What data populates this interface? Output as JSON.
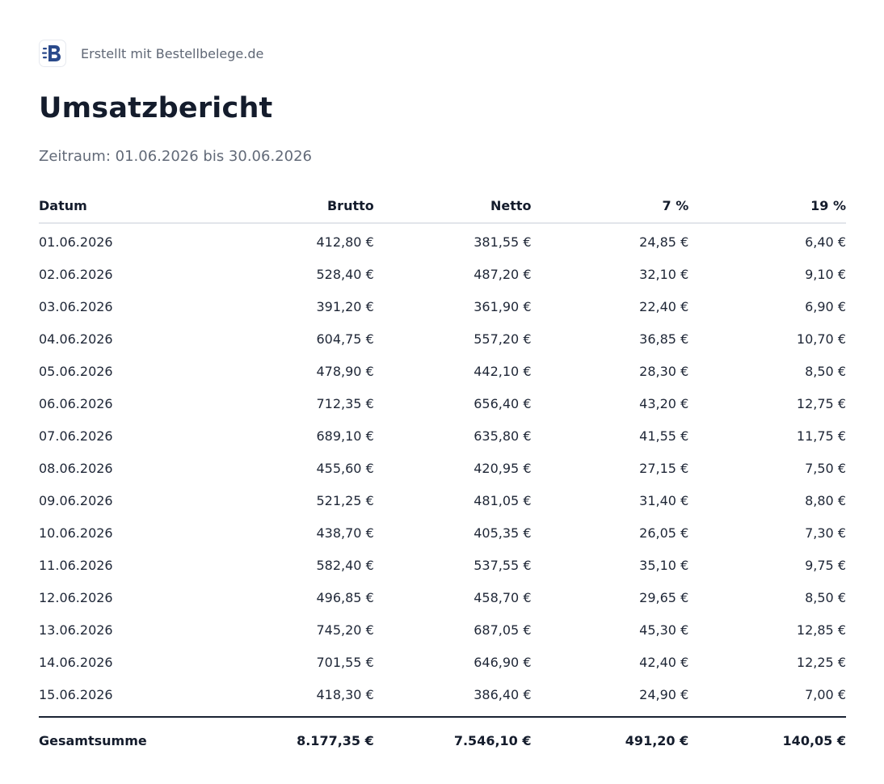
{
  "header": {
    "brand_text": "Erstellt mit Bestellbelege.de",
    "logo_letter": "B",
    "brand_color": "#2b4a8b"
  },
  "report": {
    "title": "Umsatzbericht",
    "period": "Zeitraum: 01.06.2026 bis 30.06.2026"
  },
  "table": {
    "columns": [
      "Datum",
      "Brutto",
      "Netto",
      "7 %",
      "19 %"
    ],
    "rows": [
      [
        "01.06.2026",
        "412,80 €",
        "381,55 €",
        "24,85 €",
        "6,40 €"
      ],
      [
        "02.06.2026",
        "528,40 €",
        "487,20 €",
        "32,10 €",
        "9,10 €"
      ],
      [
        "03.06.2026",
        "391,20 €",
        "361,90 €",
        "22,40 €",
        "6,90 €"
      ],
      [
        "04.06.2026",
        "604,75 €",
        "557,20 €",
        "36,85 €",
        "10,70 €"
      ],
      [
        "05.06.2026",
        "478,90 €",
        "442,10 €",
        "28,30 €",
        "8,50 €"
      ],
      [
        "06.06.2026",
        "712,35 €",
        "656,40 €",
        "43,20 €",
        "12,75 €"
      ],
      [
        "07.06.2026",
        "689,10 €",
        "635,80 €",
        "41,55 €",
        "11,75 €"
      ],
      [
        "08.06.2026",
        "455,60 €",
        "420,95 €",
        "27,15 €",
        "7,50 €"
      ],
      [
        "09.06.2026",
        "521,25 €",
        "481,05 €",
        "31,40 €",
        "8,80 €"
      ],
      [
        "10.06.2026",
        "438,70 €",
        "405,35 €",
        "26,05 €",
        "7,30 €"
      ],
      [
        "11.06.2026",
        "582,40 €",
        "537,55 €",
        "35,10 €",
        "9,75 €"
      ],
      [
        "12.06.2026",
        "496,85 €",
        "458,70 €",
        "29,65 €",
        "8,50 €"
      ],
      [
        "13.06.2026",
        "745,20 €",
        "687,05 €",
        "45,30 €",
        "12,85 €"
      ],
      [
        "14.06.2026",
        "701,55 €",
        "646,90 €",
        "42,40 €",
        "12,25 €"
      ],
      [
        "15.06.2026",
        "418,30 €",
        "386,40 €",
        "24,90 €",
        "7,00 €"
      ]
    ],
    "total": [
      "Gesamtsumme",
      "8.177,35 €",
      "7.546,10 €",
      "491,20 €",
      "140,05 €"
    ]
  }
}
